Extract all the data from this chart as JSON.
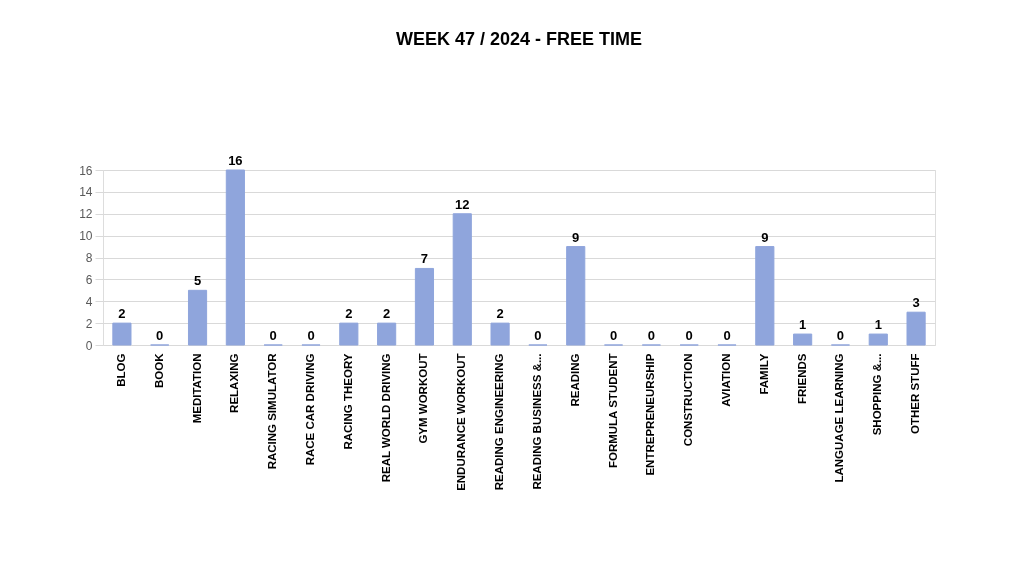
{
  "chart_data": {
    "type": "bar",
    "title": "WEEK  47 / 2024     - FREE TIME",
    "categories": [
      "BLOG",
      "BOOK",
      "MEDITATION",
      "RELAXING",
      "RACING SIMULATOR",
      "RACE CAR DRIVING",
      "RACING THEORY",
      "REAL WORLD DRIVING",
      "GYM WORKOUT",
      "ENDURANCE WORKOUT",
      "READING ENGINEERING",
      "READING BUSINESS &...",
      "READING",
      "FORMULA STUDENT",
      "ENTREPRENEURSHIP",
      "CONSTRUCTION",
      "AVIATION",
      "FAMILY",
      "FRIENDS",
      "LANGUAGE LEARNING",
      "SHOPPING &...",
      "OTHER STUFF"
    ],
    "values": [
      2,
      0,
      5,
      16,
      0,
      0,
      2,
      2,
      7,
      12,
      2,
      0,
      9,
      0,
      0,
      0,
      0,
      9,
      1,
      0,
      1,
      3
    ],
    "color": "#8fa5dc",
    "ylim": [
      0,
      16
    ],
    "yticks": [
      0,
      2,
      4,
      6,
      8,
      10,
      12,
      14,
      16
    ],
    "grid": "y",
    "data_labels": true
  }
}
